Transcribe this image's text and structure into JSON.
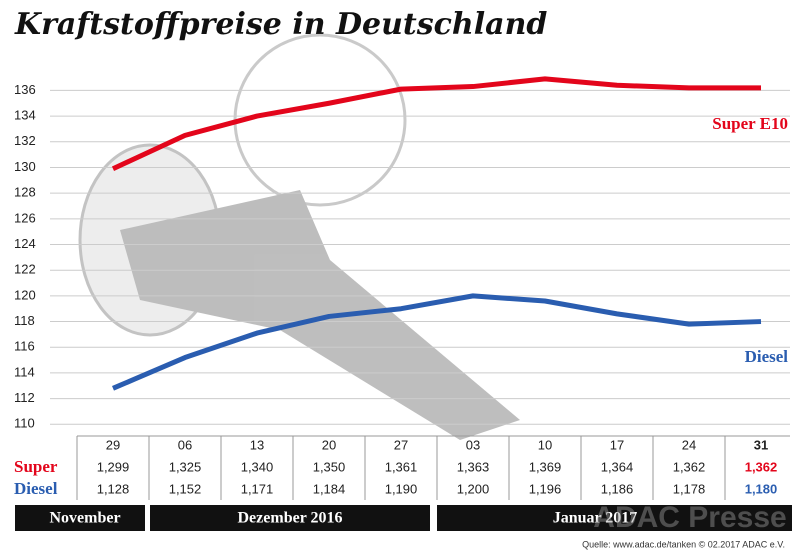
{
  "chart_data": {
    "type": "line",
    "title": "Kraftstoffpreise in Deutschland",
    "categories": [
      "29",
      "06",
      "13",
      "20",
      "27",
      "03",
      "10",
      "17",
      "24",
      "31"
    ],
    "series": [
      {
        "name": "Super E10",
        "row_label": "Super",
        "color": "#e3051b",
        "values": [
          129.9,
          132.5,
          134.0,
          135.0,
          136.1,
          136.3,
          136.9,
          136.4,
          136.2,
          136.2
        ],
        "value_labels": [
          "1,299",
          "1,325",
          "1,340",
          "1,350",
          "1,361",
          "1,363",
          "1,369",
          "1,364",
          "1,362",
          "1,362"
        ]
      },
      {
        "name": "Diesel",
        "row_label": "Diesel",
        "color": "#2a5db0",
        "values": [
          112.8,
          115.2,
          117.1,
          118.4,
          119.0,
          120.0,
          119.6,
          118.6,
          117.8,
          118.0
        ],
        "value_labels": [
          "1,128",
          "1,152",
          "1,171",
          "1,184",
          "1,190",
          "1,200",
          "1,196",
          "1,186",
          "1,178",
          "1,180"
        ]
      }
    ],
    "ylim": [
      109.4,
      137.2
    ],
    "yticks": [
      110,
      112,
      114,
      116,
      118,
      120,
      122,
      124,
      126,
      128,
      130,
      132,
      134,
      136
    ],
    "grid": true,
    "months": [
      "November",
      "Dezember 2016",
      "Januar 2017"
    ],
    "source": "Quelle: www.adac.de/tanken  © 02.2017  ADAC e.V.",
    "watermark": "ADAC Presse"
  }
}
